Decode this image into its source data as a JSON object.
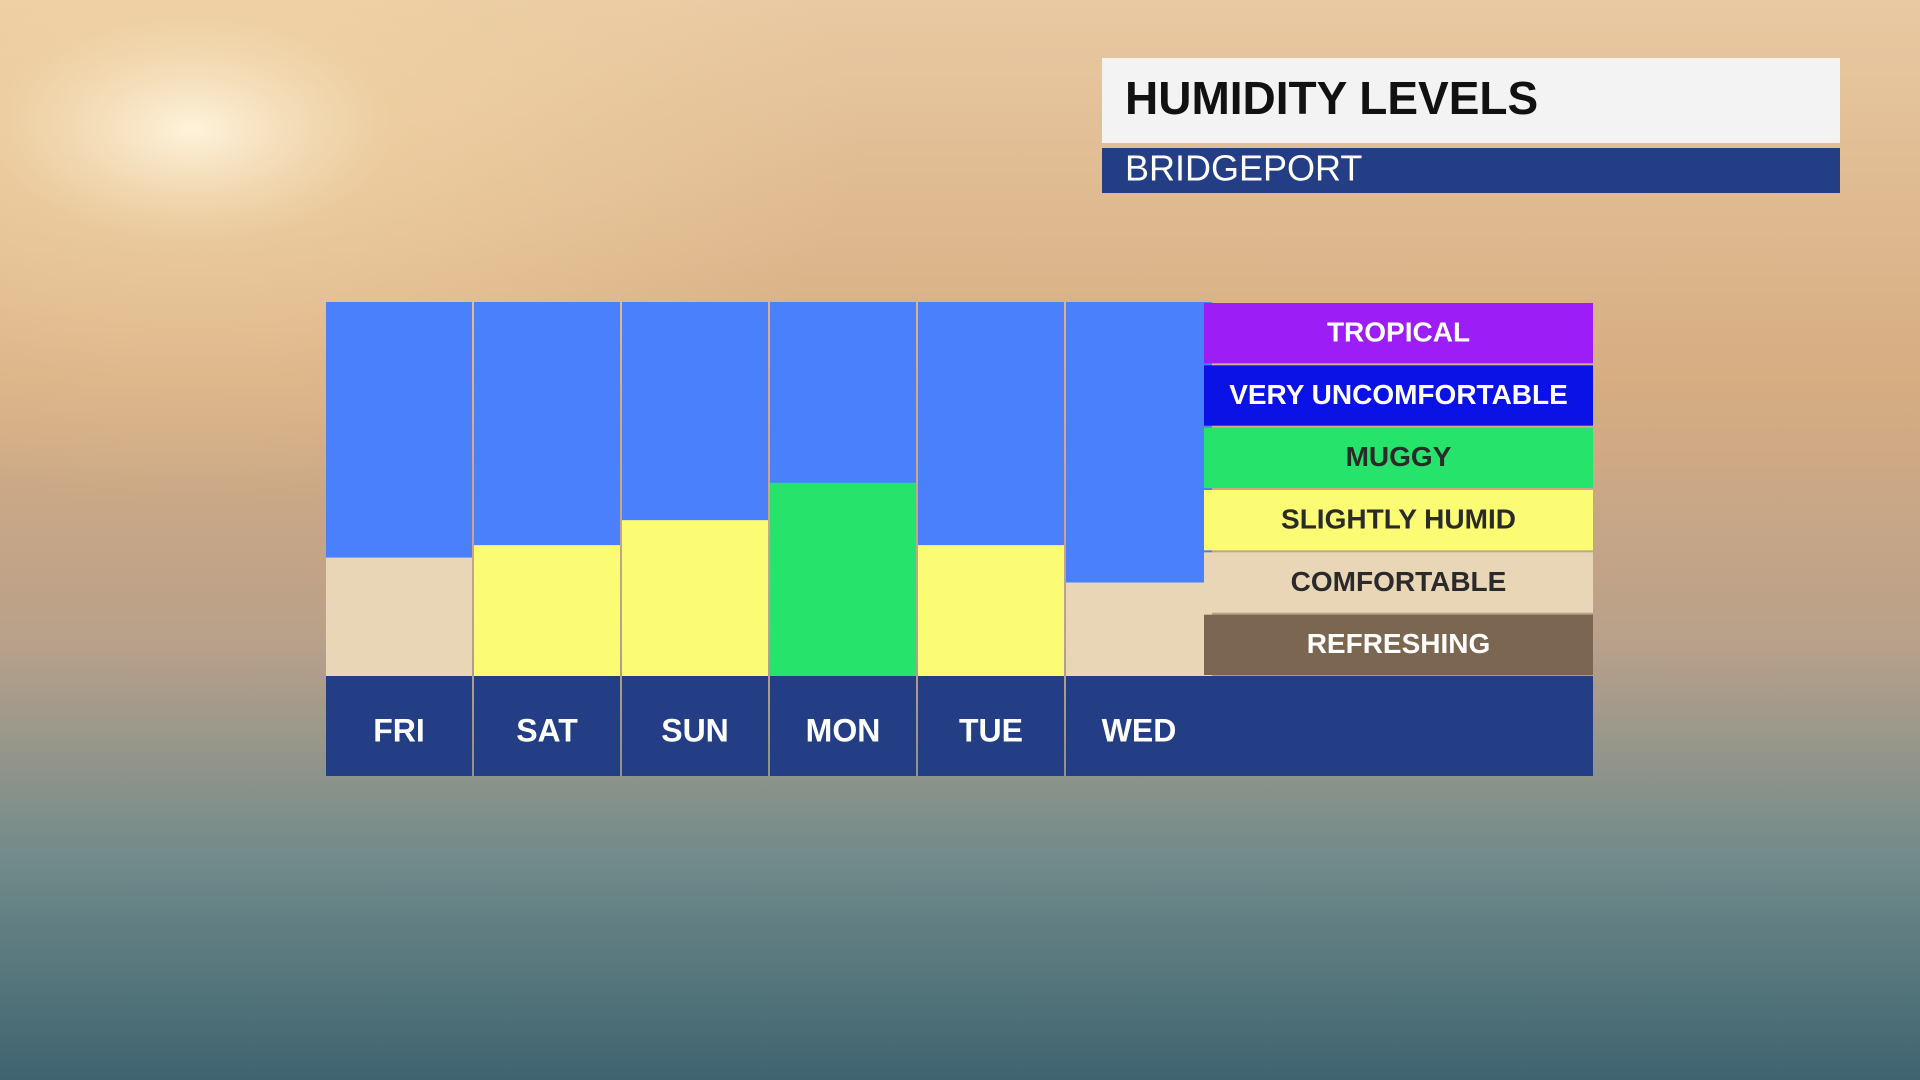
{
  "chart_data": {
    "type": "bar",
    "title": "HUMIDITY LEVELS",
    "subtitle": "BRIDGEPORT",
    "categories": [
      "FRI",
      "SAT",
      "SUN",
      "MON",
      "TUE",
      "WED"
    ],
    "values": [
      1.9,
      2.1,
      2.5,
      3.1,
      2.1,
      1.5
    ],
    "ylim": [
      0,
      6
    ],
    "levels": [
      {
        "name": "REFRESHING",
        "color": "#7b6651",
        "text_color": "#ffffff"
      },
      {
        "name": "COMFORTABLE",
        "color": "#e9d6b7",
        "text_color": "#2a2a2a"
      },
      {
        "name": "SLIGHTLY HUMID",
        "color": "#fbfb74",
        "text_color": "#2a2a2a"
      },
      {
        "name": "MUGGY",
        "color": "#26e46b",
        "text_color": "#2a2a2a"
      },
      {
        "name": "VERY UNCOMFORTABLE",
        "color": "#0b12e6",
        "text_color": "#ffffff"
      },
      {
        "name": "TROPICAL",
        "color": "#9c1df5",
        "text_color": "#ffffff"
      }
    ],
    "empty_color": "#4a80fb"
  }
}
